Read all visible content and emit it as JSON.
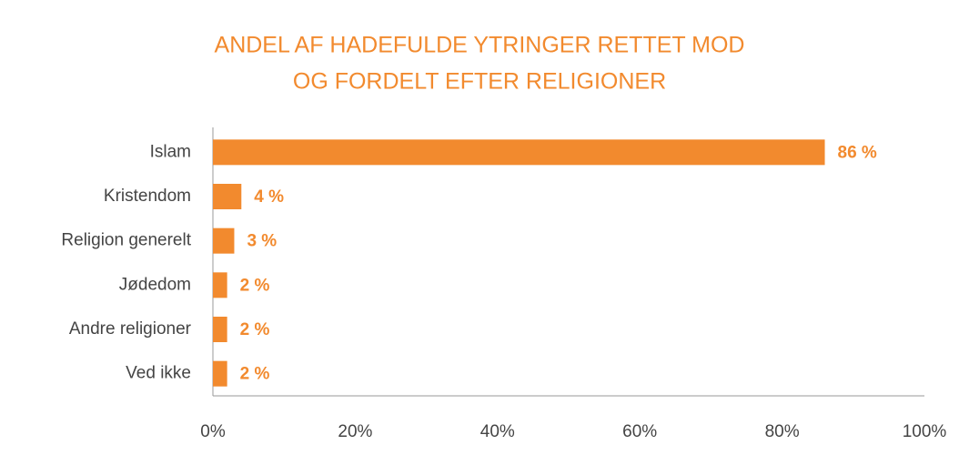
{
  "chart_data": {
    "type": "bar",
    "orientation": "horizontal",
    "title": [
      "ANDEL AF HADEFULDE YTRINGER RETTET MOD",
      "OG FORDELT EFTER RELIGIONER"
    ],
    "categories": [
      "Islam",
      "Kristendom",
      "Religion generelt",
      "Jødedom",
      "Andre religioner",
      "Ved ikke"
    ],
    "values": [
      86,
      4,
      3,
      2,
      2,
      2
    ],
    "value_labels": [
      "86 %",
      "4 %",
      "3 %",
      "2 %",
      "2 %",
      "2 %"
    ],
    "color": "#f28a2e",
    "xlim": [
      0,
      100
    ],
    "xticks": [
      {
        "value": 0,
        "label": "0%"
      },
      {
        "value": 20,
        "label": "20%"
      },
      {
        "value": 40,
        "label": "40%"
      },
      {
        "value": 60,
        "label": "60%"
      },
      {
        "value": 80,
        "label": "80%"
      },
      {
        "value": 100,
        "label": "100%"
      }
    ],
    "grid": false
  }
}
